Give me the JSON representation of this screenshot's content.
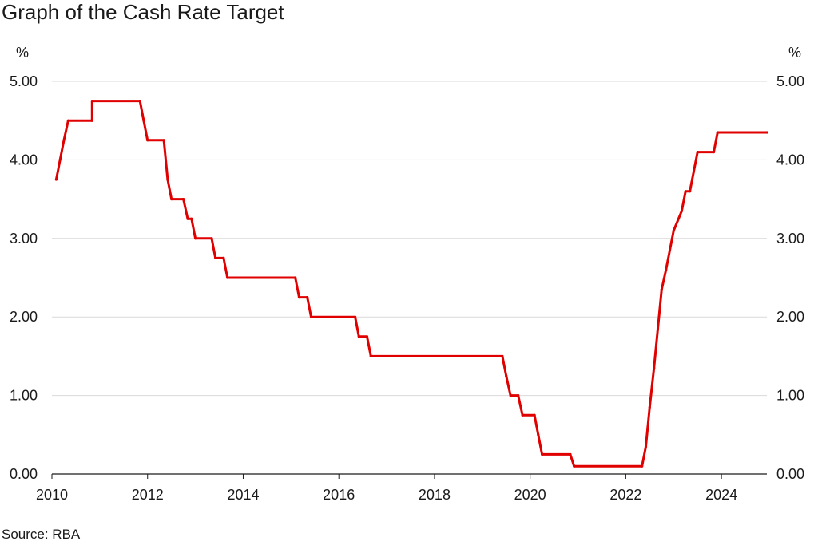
{
  "header": {
    "title": "Graph of the Cash Rate Target"
  },
  "axis": {
    "left_unit": "%",
    "right_unit": "%"
  },
  "footer": {
    "source": "Source: RBA"
  },
  "colors": {
    "line": "#e00000",
    "grid": "#d9d9d9",
    "axis": "#1a1a1a"
  },
  "chart_data": {
    "type": "line",
    "title": "Graph of the Cash Rate Target",
    "xlabel": "",
    "ylabel": "%",
    "xlim": [
      2010.0,
      2024.95
    ],
    "ylim": [
      0,
      5
    ],
    "x_ticks": [
      2010,
      2012,
      2014,
      2016,
      2018,
      2020,
      2022,
      2024
    ],
    "y_ticks": [
      0,
      1,
      2,
      3,
      4,
      5
    ],
    "y_tick_labels": [
      "0.00",
      "1.00",
      "2.00",
      "3.00",
      "4.00",
      "5.00"
    ],
    "grid": true,
    "series": [
      {
        "color": "#e00000",
        "points": [
          [
            2010.09,
            3.75
          ],
          [
            2010.17,
            4.0
          ],
          [
            2010.25,
            4.25
          ],
          [
            2010.34,
            4.5
          ],
          [
            2010.84,
            4.5
          ],
          [
            2010.84,
            4.75
          ],
          [
            2011.84,
            4.75
          ],
          [
            2011.92,
            4.5
          ],
          [
            2012.0,
            4.25
          ],
          [
            2012.34,
            4.25
          ],
          [
            2012.42,
            3.75
          ],
          [
            2012.5,
            3.5
          ],
          [
            2012.75,
            3.5
          ],
          [
            2012.84,
            3.25
          ],
          [
            2012.92,
            3.25
          ],
          [
            2013.0,
            3.0
          ],
          [
            2013.34,
            3.0
          ],
          [
            2013.42,
            2.75
          ],
          [
            2013.59,
            2.75
          ],
          [
            2013.67,
            2.5
          ],
          [
            2015.09,
            2.5
          ],
          [
            2015.17,
            2.25
          ],
          [
            2015.34,
            2.25
          ],
          [
            2015.42,
            2.0
          ],
          [
            2016.34,
            2.0
          ],
          [
            2016.42,
            1.75
          ],
          [
            2016.59,
            1.75
          ],
          [
            2016.67,
            1.5
          ],
          [
            2019.42,
            1.5
          ],
          [
            2019.5,
            1.25
          ],
          [
            2019.59,
            1.0
          ],
          [
            2019.75,
            1.0
          ],
          [
            2019.84,
            0.75
          ],
          [
            2020.09,
            0.75
          ],
          [
            2020.17,
            0.5
          ],
          [
            2020.25,
            0.25
          ],
          [
            2020.84,
            0.25
          ],
          [
            2020.92,
            0.1
          ],
          [
            2022.34,
            0.1
          ],
          [
            2022.42,
            0.35
          ],
          [
            2022.5,
            0.85
          ],
          [
            2022.59,
            1.35
          ],
          [
            2022.67,
            1.85
          ],
          [
            2022.75,
            2.35
          ],
          [
            2022.84,
            2.6
          ],
          [
            2022.92,
            2.85
          ],
          [
            2023.0,
            3.1
          ],
          [
            2023.17,
            3.35
          ],
          [
            2023.25,
            3.6
          ],
          [
            2023.34,
            3.6
          ],
          [
            2023.42,
            3.85
          ],
          [
            2023.5,
            4.1
          ],
          [
            2023.84,
            4.1
          ],
          [
            2023.92,
            4.35
          ],
          [
            2024.95,
            4.35
          ]
        ]
      }
    ]
  }
}
